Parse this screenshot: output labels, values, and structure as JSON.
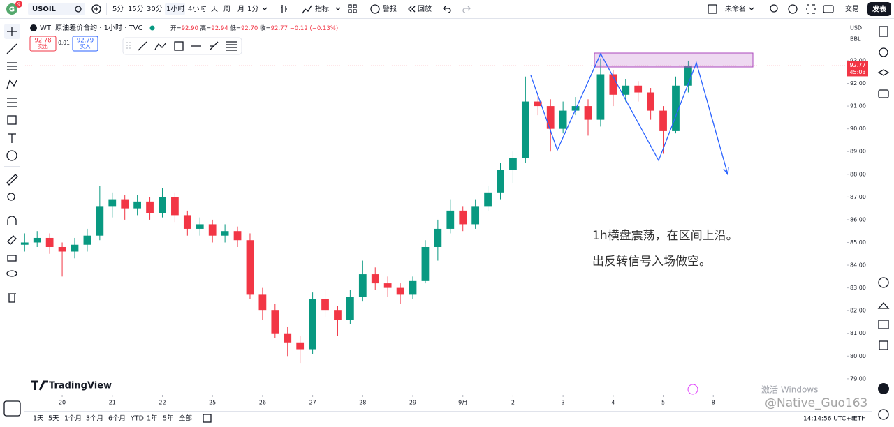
{
  "toolbar": {
    "badge": "9",
    "symbol": "USOIL",
    "intervals": [
      "5分",
      "15分",
      "30分",
      "1小时",
      "4小时",
      "天",
      "周",
      "月",
      "1分"
    ],
    "indicators": "指标",
    "alert": "警报",
    "replay": "回放",
    "layout_name": "未命名",
    "trade": "交易",
    "publish": "发表"
  },
  "legend": {
    "title": "WTI 原油差价合约 · 1小时 · TVC",
    "keys": [
      "开=",
      "高=",
      "低=",
      "收="
    ],
    "values": [
      "92.90",
      "92.94",
      "92.70",
      "92.77"
    ],
    "change": "−0.12 (−0.13%)"
  },
  "order": {
    "sell_price": "92.78",
    "sell": "卖出",
    "spread": "0.01",
    "buy_price": "92.79",
    "buy": "买入"
  },
  "price_axis": {
    "currency": "USD",
    "unit": "BBL"
  },
  "chart_data": {
    "type": "candlestick",
    "x": [
      -0.75,
      -0.5,
      -0.25,
      0,
      0.25,
      0.5,
      0.75,
      1,
      1.25,
      1.5,
      1.75,
      2,
      2.25,
      2.5,
      2.75,
      3,
      3.25,
      3.5,
      3.75,
      4,
      4.25,
      4.5,
      4.75,
      5,
      5.25,
      5.5,
      5.75,
      6,
      6.25,
      6.5,
      6.75,
      7,
      7.25,
      7.5,
      7.75,
      8,
      8.25,
      8.5,
      8.75,
      9,
      9.25,
      9.5,
      9.75,
      10,
      10.25,
      10.5,
      10.75,
      11,
      11.25,
      11.5,
      11.75,
      12,
      12.25,
      12.5
    ],
    "open": [
      84.9,
      85.0,
      85.2,
      84.8,
      84.6,
      84.9,
      85.3,
      86.6,
      86.9,
      86.5,
      86.8,
      86.3,
      87.0,
      86.2,
      85.6,
      85.8,
      85.3,
      85.5,
      85.1,
      82.7,
      82.0,
      81.0,
      80.6,
      80.3,
      82.5,
      82.0,
      81.6,
      82.6,
      83.6,
      83.2,
      83.0,
      82.7,
      83.3,
      84.8,
      85.6,
      86.4,
      85.8,
      86.6,
      87.2,
      88.2,
      88.7,
      91.2,
      91.0,
      90.0,
      90.8,
      91.0,
      90.4,
      92.4,
      91.5,
      91.9,
      91.6,
      90.8,
      89.9,
      91.9
    ],
    "high": [
      85.4,
      85.5,
      85.4,
      85.0,
      85.2,
      85.6,
      87.5,
      87.2,
      87.1,
      87.1,
      87.0,
      87.4,
      87.2,
      86.4,
      86.1,
      86.0,
      85.8,
      85.7,
      85.4,
      83.0,
      82.3,
      81.3,
      80.9,
      82.8,
      82.9,
      82.2,
      82.9,
      84.2,
      83.9,
      83.5,
      83.2,
      83.5,
      85.1,
      86.0,
      86.9,
      86.6,
      86.9,
      87.5,
      88.5,
      89.0,
      92.3,
      91.5,
      91.3,
      91.2,
      91.4,
      91.3,
      93.1,
      92.6,
      92.2,
      92.1,
      91.8,
      91.0,
      92.3,
      93.0
    ],
    "low": [
      84.6,
      84.8,
      84.5,
      83.5,
      84.3,
      84.6,
      85.1,
      86.1,
      86.0,
      86.2,
      86.0,
      86.1,
      85.9,
      85.3,
      85.3,
      85.0,
      85.0,
      84.8,
      82.5,
      81.6,
      80.8,
      80.0,
      79.7,
      80.1,
      81.7,
      80.9,
      81.4,
      82.4,
      82.9,
      82.6,
      82.3,
      82.5,
      83.2,
      84.2,
      85.4,
      85.5,
      85.6,
      86.4,
      86.9,
      87.6,
      88.5,
      90.6,
      89.0,
      89.8,
      90.6,
      89.7,
      90.1,
      91.0,
      91.2,
      91.2,
      90.4,
      88.9,
      89.8,
      91.6
    ],
    "close": [
      85.0,
      85.2,
      84.8,
      84.6,
      84.9,
      85.3,
      86.6,
      86.9,
      86.5,
      86.8,
      86.3,
      87.0,
      86.2,
      85.6,
      85.8,
      85.3,
      85.5,
      85.1,
      82.7,
      82.0,
      81.0,
      80.6,
      80.3,
      82.5,
      82.0,
      81.6,
      82.6,
      83.6,
      83.2,
      83.0,
      82.7,
      83.3,
      84.8,
      85.6,
      86.4,
      85.8,
      86.6,
      87.2,
      88.2,
      88.7,
      91.2,
      91.0,
      90.0,
      90.8,
      91.0,
      90.4,
      92.4,
      91.5,
      91.9,
      91.6,
      90.8,
      89.9,
      91.9,
      92.77
    ],
    "up_color": "#089981",
    "down_color": "#f23645",
    "xlim": [
      -0.74,
      15.66
    ],
    "xticks": [
      {
        "value": 0,
        "label": "20"
      },
      {
        "value": 1,
        "label": "21"
      },
      {
        "value": 2,
        "label": "22"
      },
      {
        "value": 3,
        "label": "25"
      },
      {
        "value": 4,
        "label": "26"
      },
      {
        "value": 5,
        "label": "27"
      },
      {
        "value": 6,
        "label": "28"
      },
      {
        "value": 7,
        "label": "29"
      },
      {
        "value": 8,
        "label": "9月"
      },
      {
        "value": 9,
        "label": "2"
      },
      {
        "value": 10,
        "label": "3"
      },
      {
        "value": 11,
        "label": "4"
      },
      {
        "value": 12,
        "label": "5"
      },
      {
        "value": 13,
        "label": "8"
      }
    ],
    "ylim": [
      78.29,
      94.81
    ],
    "yticks": [
      {
        "value": 79,
        "label": "79.00"
      },
      {
        "value": 80,
        "label": "80.00"
      },
      {
        "value": 81,
        "label": "81.00"
      },
      {
        "value": 82,
        "label": "82.00"
      },
      {
        "value": 83,
        "label": "83.00"
      },
      {
        "value": 84,
        "label": "84.00"
      },
      {
        "value": 85,
        "label": "85.00"
      },
      {
        "value": 86,
        "label": "86.00"
      },
      {
        "value": 87,
        "label": "87.00"
      },
      {
        "value": 88,
        "label": "88.00"
      },
      {
        "value": 89,
        "label": "89.00"
      },
      {
        "value": 90,
        "label": "90.00"
      },
      {
        "value": 91,
        "label": "91.00"
      },
      {
        "value": 92,
        "label": "92.00"
      },
      {
        "value": 93,
        "label": "93.00"
      }
    ],
    "grid": false,
    "last_price": 92.77,
    "countdown": "45:03",
    "annotations": [
      "1h横盘震荡，在区间上沿。",
      "出反转信号入场做空。"
    ]
  },
  "bottom": {
    "ranges": [
      "1天",
      "5天",
      "1个月",
      "3个月",
      "6个月",
      "YTD",
      "1年",
      "5年",
      "全部"
    ],
    "time": "14:14:56 UTC+8",
    "session": "ETH"
  },
  "branding": {
    "logo": "TradingView",
    "os_notice": "激活 Windows",
    "watermark": "@Native_Guo163"
  }
}
